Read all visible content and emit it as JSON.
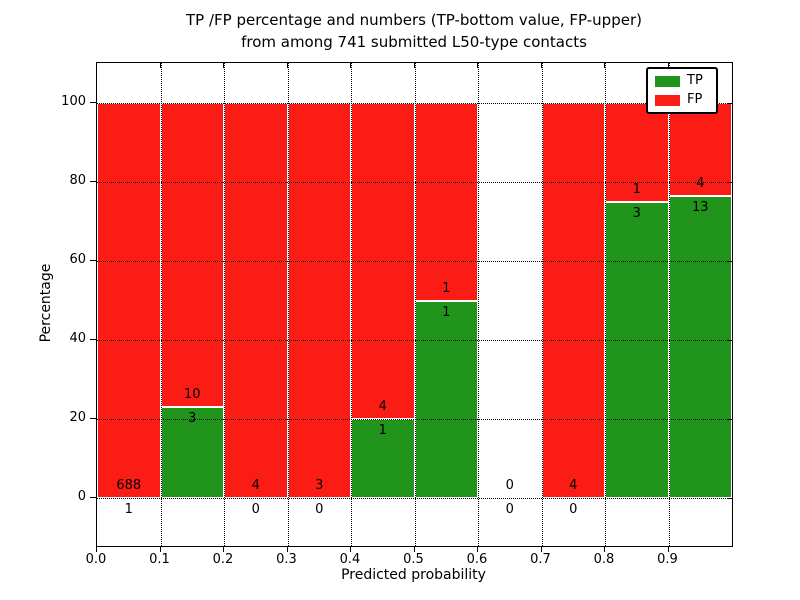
{
  "figure": {
    "title_line1": "TP /FP percentage and numbers (TP-bottom value, FP-upper)",
    "title_line2": "from among 741 submitted L50-type contacts"
  },
  "chart_data": {
    "type": "bar",
    "stacked": true,
    "normalized_per_bin_to_100pct": true,
    "title": "TP /FP percentage and numbers (TP-bottom value, FP-upper)\nfrom among 741 submitted L50-type contacts",
    "xlabel": "Predicted probability",
    "ylabel": "Percentage",
    "total_contacts": 741,
    "xlim": [
      0.0,
      1.0
    ],
    "ylim": [
      -12,
      110
    ],
    "bar_width": 0.1,
    "grid": "dotted, both axes, drawn above bars",
    "xticks": [
      "0.0",
      "0.1",
      "0.2",
      "0.3",
      "0.4",
      "0.5",
      "0.6",
      "0.7",
      "0.8",
      "0.9"
    ],
    "yticks": [
      0,
      20,
      40,
      60,
      80,
      100
    ],
    "legend": {
      "position": "upper right",
      "entries": [
        {
          "label": "TP",
          "color": "#21941c"
        },
        {
          "label": "FP",
          "color": "#fb1d15"
        }
      ]
    },
    "bins": [
      {
        "range": [
          0.0,
          0.1
        ],
        "tp": 1,
        "fp": 688,
        "tp_pct": 0.15
      },
      {
        "range": [
          0.1,
          0.2
        ],
        "tp": 3,
        "fp": 10,
        "tp_pct": 23.08
      },
      {
        "range": [
          0.2,
          0.3
        ],
        "tp": 0,
        "fp": 4,
        "tp_pct": 0
      },
      {
        "range": [
          0.3,
          0.4
        ],
        "tp": 0,
        "fp": 3,
        "tp_pct": 0
      },
      {
        "range": [
          0.4,
          0.5
        ],
        "tp": 1,
        "fp": 4,
        "tp_pct": 20
      },
      {
        "range": [
          0.5,
          0.6
        ],
        "tp": 1,
        "fp": 1,
        "tp_pct": 50
      },
      {
        "range": [
          0.6,
          0.7
        ],
        "tp": 0,
        "fp": 0,
        "tp_pct": 0
      },
      {
        "range": [
          0.7,
          0.8
        ],
        "tp": 0,
        "fp": 4,
        "tp_pct": 0
      },
      {
        "range": [
          0.8,
          0.9
        ],
        "tp": 3,
        "fp": 1,
        "tp_pct": 75
      },
      {
        "range": [
          0.9,
          1.0
        ],
        "tp": 13,
        "fp": 4,
        "tp_pct": 76.47
      }
    ]
  },
  "colors": {
    "tp": "#21941c",
    "fp": "#fb1d15",
    "grid": "#000000",
    "spine": "#000000",
    "background": "#ffffff"
  }
}
